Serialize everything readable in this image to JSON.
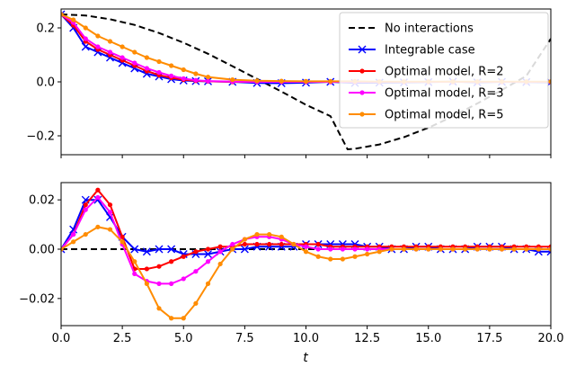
{
  "chart_data": {
    "type": "line",
    "shared_xlabel": "t",
    "xlim": [
      0,
      20
    ],
    "xticks": [
      0,
      2.5,
      5,
      7.5,
      10,
      12.5,
      15,
      17.5,
      20
    ],
    "xtick_labels": [
      "0.0",
      "2.5",
      "5.0",
      "7.5",
      "10.0",
      "12.5",
      "15.0",
      "17.5",
      "20.0"
    ],
    "colors": {
      "no_interactions": "#000000",
      "integrable": "#0000ff",
      "r2": "#ff0000",
      "r3": "#ff00ff",
      "r5": "#ff8c00"
    },
    "legend": {
      "placement": "top-right of top panel",
      "entries": [
        {
          "key": "no_interactions",
          "label": "No interactions"
        },
        {
          "key": "integrable",
          "label": "Integrable case"
        },
        {
          "key": "r2",
          "label": "Optimal model, R=2"
        },
        {
          "key": "r3",
          "label": "Optimal model, R=3"
        },
        {
          "key": "r5",
          "label": "Optimal model, R=5"
        }
      ]
    },
    "panels": [
      {
        "ylim": [
          -0.27,
          0.27
        ],
        "yticks": [
          -0.2,
          0,
          0.2
        ],
        "ytick_labels": [
          "−0.2",
          "0.0",
          "0.2"
        ],
        "series": [
          {
            "key": "no_interactions",
            "style": "dashed",
            "marker": "none",
            "x": [
              0,
              1,
              2,
              3,
              4,
              5,
              6,
              7,
              8,
              9,
              10,
              11,
              11.7,
              12,
              13,
              14,
              15,
              16,
              17,
              18,
              19,
              20
            ],
            "y": [
              0.25,
              0.246,
              0.232,
              0.211,
              0.181,
              0.145,
              0.104,
              0.058,
              0.011,
              -0.036,
              -0.085,
              -0.127,
              -0.25,
              -0.248,
              -0.232,
              -0.205,
              -0.17,
              -0.128,
              -0.08,
              -0.03,
              0.022,
              0.16
            ]
          },
          {
            "key": "integrable",
            "style": "solid",
            "marker": "x",
            "x": [
              0,
              0.5,
              1,
              1.5,
              2,
              2.5,
              3,
              3.5,
              4,
              4.5,
              5,
              5.5,
              6,
              7,
              8,
              9,
              10,
              11,
              12,
              13,
              14,
              15,
              16,
              17,
              18,
              19,
              20
            ],
            "y": [
              0.25,
              0.2,
              0.13,
              0.11,
              0.09,
              0.07,
              0.05,
              0.03,
              0.02,
              0.01,
              0.005,
              0.003,
              0.002,
              0,
              -0.004,
              -0.005,
              -0.003,
              0,
              -0.004,
              -0.003,
              -0.002,
              -0.001,
              0.001,
              -0.002,
              0,
              -0.001,
              -0.002
            ]
          },
          {
            "key": "r2",
            "style": "solid",
            "marker": "dot",
            "x": [
              0,
              0.5,
              1,
              1.5,
              2,
              2.5,
              3,
              3.5,
              4,
              4.5,
              5,
              5.5,
              6,
              7,
              8,
              9,
              10,
              11,
              12,
              13,
              14,
              15,
              16,
              17,
              18,
              19,
              20
            ],
            "y": [
              0.25,
              0.21,
              0.15,
              0.12,
              0.1,
              0.08,
              0.06,
              0.04,
              0.025,
              0.015,
              0.008,
              0.004,
              0.002,
              0,
              0,
              0,
              0,
              0,
              0,
              0,
              0,
              0,
              0,
              0,
              0,
              0,
              0
            ]
          },
          {
            "key": "r3",
            "style": "solid",
            "marker": "dot",
            "x": [
              0,
              0.5,
              1,
              1.5,
              2,
              2.5,
              3,
              3.5,
              4,
              4.5,
              5,
              5.5,
              6,
              7,
              8,
              9,
              10,
              11,
              12,
              13,
              14,
              15,
              16,
              17,
              18,
              19,
              20
            ],
            "y": [
              0.25,
              0.22,
              0.16,
              0.13,
              0.11,
              0.09,
              0.07,
              0.05,
              0.035,
              0.022,
              0.012,
              0.006,
              0.003,
              0.001,
              0,
              0,
              0,
              0,
              0,
              0,
              0,
              0,
              0,
              0,
              0,
              0,
              0
            ]
          },
          {
            "key": "r5",
            "style": "solid",
            "marker": "dot",
            "x": [
              0,
              0.5,
              1,
              1.5,
              2,
              2.5,
              3,
              3.5,
              4,
              4.5,
              5,
              5.5,
              6,
              7,
              8,
              9,
              10,
              11,
              12,
              13,
              14,
              15,
              16,
              17,
              18,
              19,
              20
            ],
            "y": [
              0.25,
              0.23,
              0.2,
              0.17,
              0.15,
              0.13,
              0.11,
              0.09,
              0.075,
              0.06,
              0.045,
              0.03,
              0.018,
              0.008,
              0.004,
              0.003,
              0.002,
              0.002,
              0.002,
              0.001,
              0.001,
              0.001,
              0.001,
              0.001,
              0.001,
              0.001,
              0.001
            ]
          }
        ]
      },
      {
        "ylim": [
          -0.031,
          0.027
        ],
        "yticks": [
          -0.02,
          0,
          0.02
        ],
        "ytick_labels": [
          "−0.02",
          "0.00",
          "0.02"
        ],
        "series": [
          {
            "key": "no_interactions",
            "style": "dashed",
            "marker": "none",
            "x": [
              0,
              20
            ],
            "y": [
              0,
              0
            ]
          },
          {
            "key": "integrable",
            "style": "solid",
            "marker": "x",
            "x": [
              0,
              0.5,
              1,
              1.5,
              2,
              2.5,
              3,
              3.5,
              4,
              4.5,
              5,
              5.5,
              6,
              6.5,
              7,
              7.5,
              8,
              8.5,
              9,
              9.5,
              10,
              10.5,
              11,
              11.5,
              12,
              12.5,
              13,
              13.5,
              14,
              14.5,
              15,
              15.5,
              16,
              16.5,
              17,
              17.5,
              18,
              18.5,
              19,
              19.5,
              20
            ],
            "y": [
              0,
              0.008,
              0.02,
              0.02,
              0.013,
              0.005,
              0.0,
              -0.001,
              0.0,
              0.0,
              -0.002,
              -0.002,
              -0.002,
              -0.001,
              0.0,
              0.0,
              0.001,
              0.001,
              0.001,
              0.001,
              0.002,
              0.002,
              0.002,
              0.002,
              0.002,
              0.001,
              0.001,
              0.0,
              0.0,
              0.001,
              0.001,
              0.0,
              0.0,
              0.0,
              0.001,
              0.001,
              0.001,
              0.0,
              0.0,
              -0.001,
              -0.001
            ]
          },
          {
            "key": "r2",
            "style": "solid",
            "marker": "dot",
            "x": [
              0,
              0.5,
              1,
              1.5,
              2,
              2.5,
              3,
              3.5,
              4,
              4.5,
              5,
              5.5,
              6,
              6.5,
              7,
              7.5,
              8,
              8.5,
              9,
              9.5,
              10,
              10.5,
              11,
              11.5,
              12,
              12.5,
              13,
              13.5,
              14,
              14.5,
              15,
              15.5,
              16,
              16.5,
              17,
              17.5,
              18,
              18.5,
              19,
              19.5,
              20
            ],
            "y": [
              0,
              0.006,
              0.018,
              0.024,
              0.018,
              0.005,
              -0.008,
              -0.008,
              -0.007,
              -0.005,
              -0.003,
              -0.001,
              0.0,
              0.001,
              0.001,
              0.002,
              0.002,
              0.002,
              0.002,
              0.002,
              0.002,
              0.002,
              0.001,
              0.001,
              0.001,
              0.001,
              0.001,
              0.001,
              0.001,
              0.001,
              0.001,
              0.001,
              0.001,
              0.001,
              0.001,
              0.001,
              0.001,
              0.001,
              0.001,
              0.001,
              0.001
            ]
          },
          {
            "key": "r3",
            "style": "solid",
            "marker": "dot",
            "x": [
              0,
              0.5,
              1,
              1.5,
              2,
              2.5,
              3,
              3.5,
              4,
              4.5,
              5,
              5.5,
              6,
              6.5,
              7,
              7.5,
              8,
              8.5,
              9,
              9.5,
              10,
              10.5,
              11,
              11.5,
              12,
              12.5,
              13,
              13.5,
              14,
              14.5,
              15,
              15.5,
              16,
              16.5,
              17,
              17.5,
              18,
              18.5,
              19,
              19.5,
              20
            ],
            "y": [
              0,
              0.006,
              0.016,
              0.021,
              0.015,
              0.002,
              -0.01,
              -0.013,
              -0.014,
              -0.014,
              -0.012,
              -0.009,
              -0.005,
              -0.001,
              0.002,
              0.004,
              0.005,
              0.005,
              0.004,
              0.002,
              0.001,
              0.0,
              0.0,
              0.0,
              0.0,
              0.0,
              0.0,
              0.0,
              0.0,
              0.0,
              0.0,
              0.0,
              0.0,
              0.0,
              0.0,
              0.0,
              0.0,
              0.0,
              0.0,
              0.0,
              0.0
            ]
          },
          {
            "key": "r5",
            "style": "solid",
            "marker": "dot",
            "x": [
              0,
              0.5,
              1,
              1.5,
              2,
              2.5,
              3,
              3.5,
              4,
              4.5,
              5,
              5.5,
              6,
              6.5,
              7,
              7.5,
              8,
              8.5,
              9,
              9.5,
              10,
              10.5,
              11,
              11.5,
              12,
              12.5,
              13,
              13.5,
              14,
              14.5,
              15,
              15.5,
              16,
              16.5,
              17,
              17.5,
              18,
              18.5,
              19,
              19.5,
              20
            ],
            "y": [
              0,
              0.003,
              0.006,
              0.009,
              0.008,
              0.003,
              -0.005,
              -0.014,
              -0.024,
              -0.028,
              -0.028,
              -0.022,
              -0.014,
              -0.006,
              0.0,
              0.004,
              0.006,
              0.006,
              0.005,
              0.002,
              -0.001,
              -0.003,
              -0.004,
              -0.004,
              -0.003,
              -0.002,
              -0.001,
              0.0,
              0.0,
              0.0,
              0.0,
              0.0,
              0.0,
              0.0,
              0.0,
              0.0,
              0.0,
              0.0,
              0.0,
              0.0,
              0.0
            ]
          }
        ]
      }
    ]
  }
}
